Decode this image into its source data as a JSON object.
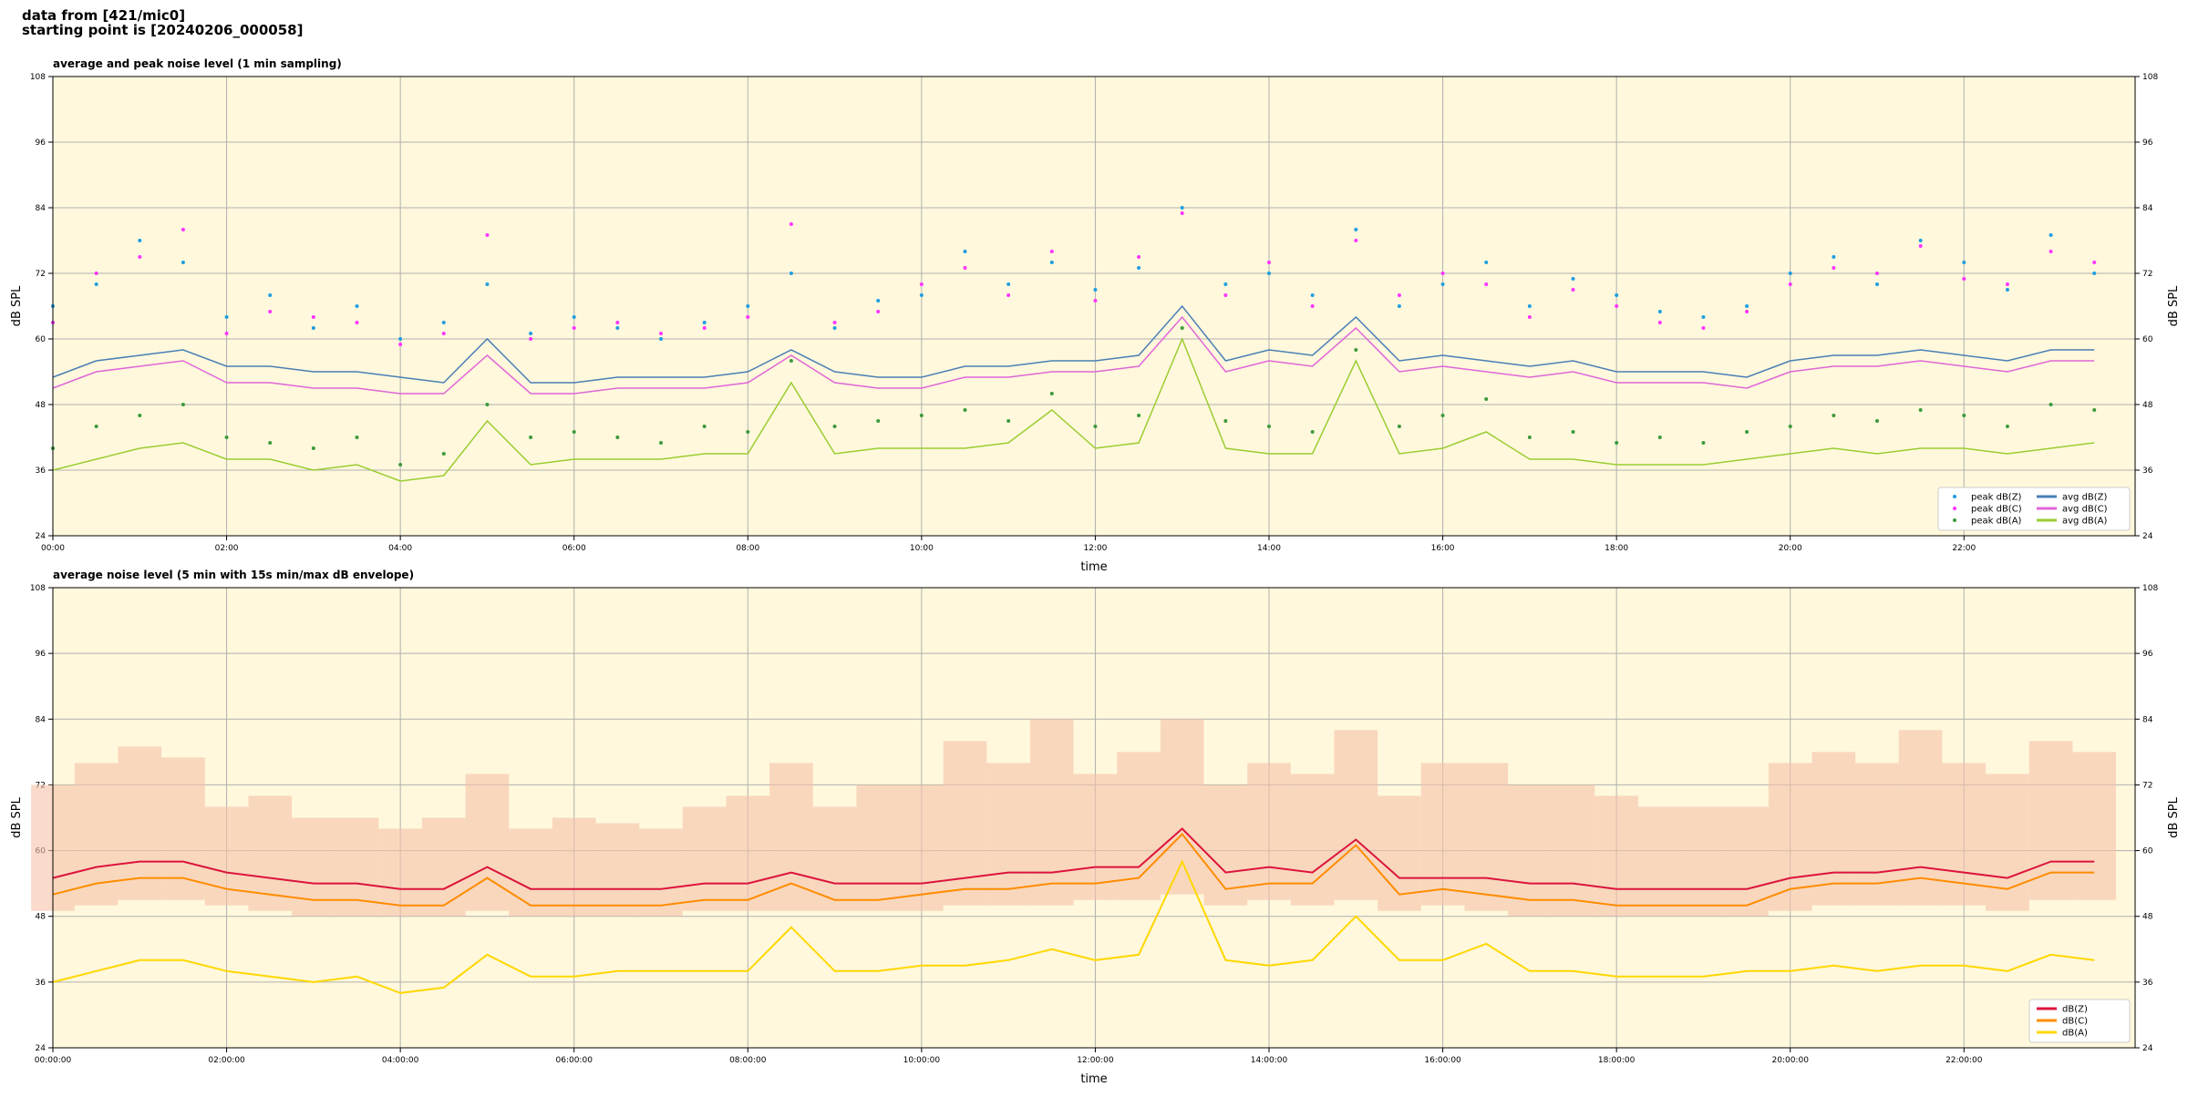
{
  "header": {
    "lines": [
      "data from [421/mic0]",
      "starting point is [20240206_000058]"
    ]
  },
  "chart_data": [
    {
      "type": "line",
      "title": "average and peak noise level (1 min sampling)",
      "xlabel": "time",
      "ylabel": "dB SPL",
      "background": "#fff8dc",
      "grid": true,
      "legend": "lower right",
      "xlim": [
        0,
        23.97
      ],
      "ylim": [
        24,
        108
      ],
      "yticks": [
        24,
        36,
        48,
        60,
        72,
        84,
        96,
        108
      ],
      "xticks": [
        {
          "value": 0,
          "label": "00:00"
        },
        {
          "value": 2,
          "label": "02:00"
        },
        {
          "value": 4,
          "label": "04:00"
        },
        {
          "value": 6,
          "label": "06:00"
        },
        {
          "value": 8,
          "label": "08:00"
        },
        {
          "value": 10,
          "label": "10:00"
        },
        {
          "value": 12,
          "label": "12:00"
        },
        {
          "value": 14,
          "label": "14:00"
        },
        {
          "value": 16,
          "label": "16:00"
        },
        {
          "value": 18,
          "label": "18:00"
        },
        {
          "value": 20,
          "label": "20:00"
        },
        {
          "value": 22,
          "label": "22:00"
        }
      ],
      "x": [
        0,
        0.5,
        1,
        1.5,
        2,
        2.5,
        3,
        3.5,
        4,
        4.5,
        5,
        5.5,
        6,
        6.5,
        7,
        7.5,
        8,
        8.5,
        9,
        9.5,
        10,
        10.5,
        11,
        11.5,
        12,
        12.5,
        13,
        13.5,
        14,
        14.5,
        15,
        15.5,
        16,
        16.5,
        17,
        17.5,
        18,
        18.5,
        19,
        19.5,
        20,
        20.5,
        21,
        21.5,
        22,
        22.5,
        23,
        23.5
      ],
      "series": [
        {
          "name": "peak dB(Z)",
          "mode": "markers",
          "color": "#1f9fe0",
          "values": [
            66,
            70,
            78,
            74,
            64,
            68,
            62,
            66,
            60,
            63,
            70,
            61,
            64,
            62,
            60,
            63,
            66,
            72,
            62,
            67,
            68,
            76,
            70,
            74,
            69,
            73,
            84,
            70,
            72,
            68,
            80,
            66,
            70,
            74,
            66,
            71,
            68,
            65,
            64,
            66,
            72,
            75,
            70,
            78,
            74,
            69,
            79,
            72
          ]
        },
        {
          "name": "peak dB(C)",
          "mode": "markers",
          "color": "#ff33ff",
          "values": [
            63,
            72,
            75,
            80,
            61,
            65,
            64,
            63,
            59,
            61,
            79,
            60,
            62,
            63,
            61,
            62,
            64,
            81,
            63,
            65,
            70,
            73,
            68,
            76,
            67,
            75,
            83,
            68,
            74,
            66,
            78,
            68,
            72,
            70,
            64,
            69,
            66,
            63,
            62,
            65,
            70,
            73,
            72,
            77,
            71,
            70,
            76,
            74
          ]
        },
        {
          "name": "peak dB(A)",
          "mode": "markers",
          "color": "#3c9a3c",
          "values": [
            40,
            44,
            46,
            48,
            42,
            41,
            40,
            42,
            37,
            39,
            48,
            42,
            43,
            42,
            41,
            44,
            43,
            56,
            44,
            45,
            46,
            47,
            45,
            50,
            44,
            46,
            62,
            45,
            44,
            43,
            58,
            44,
            46,
            49,
            42,
            43,
            41,
            42,
            41,
            43,
            44,
            46,
            45,
            47,
            46,
            44,
            48,
            47
          ]
        },
        {
          "name": "avg dB(Z)",
          "mode": "line",
          "color": "#4a7fb5",
          "values": [
            53,
            56,
            57,
            58,
            55,
            55,
            54,
            54,
            53,
            52,
            60,
            52,
            52,
            53,
            53,
            53,
            54,
            58,
            54,
            53,
            53,
            55,
            55,
            56,
            56,
            57,
            66,
            56,
            58,
            57,
            64,
            56,
            57,
            56,
            55,
            56,
            54,
            54,
            54,
            53,
            56,
            57,
            57,
            58,
            57,
            56,
            58,
            58
          ]
        },
        {
          "name": "avg dB(C)",
          "mode": "line",
          "color": "#e066d8",
          "values": [
            51,
            54,
            55,
            56,
            52,
            52,
            51,
            51,
            50,
            50,
            57,
            50,
            50,
            51,
            51,
            51,
            52,
            57,
            52,
            51,
            51,
            53,
            53,
            54,
            54,
            55,
            64,
            54,
            56,
            55,
            62,
            54,
            55,
            54,
            53,
            54,
            52,
            52,
            52,
            51,
            54,
            55,
            55,
            56,
            55,
            54,
            56,
            56
          ]
        },
        {
          "name": "avg dB(A)",
          "mode": "line",
          "color": "#9acd32",
          "values": [
            36,
            38,
            40,
            41,
            38,
            38,
            36,
            37,
            34,
            35,
            45,
            37,
            38,
            38,
            38,
            39,
            39,
            52,
            39,
            40,
            40,
            40,
            41,
            47,
            40,
            41,
            60,
            40,
            39,
            39,
            56,
            39,
            40,
            43,
            38,
            38,
            37,
            37,
            37,
            38,
            39,
            40,
            39,
            40,
            40,
            39,
            40,
            41
          ]
        }
      ]
    },
    {
      "type": "line",
      "title": "average noise level (5 min with 15s min/max dB envelope)",
      "xlabel": "time",
      "ylabel": "dB SPL",
      "background": "#fff8dc",
      "grid": true,
      "legend": "lower right",
      "xlim": [
        0,
        23.97
      ],
      "ylim": [
        24,
        108
      ],
      "yticks": [
        24,
        36,
        48,
        60,
        72,
        84,
        96,
        108
      ],
      "xticks": [
        {
          "value": 0,
          "label": "00:00:00"
        },
        {
          "value": 2,
          "label": "02:00:00"
        },
        {
          "value": 4,
          "label": "04:00:00"
        },
        {
          "value": 6,
          "label": "06:00:00"
        },
        {
          "value": 8,
          "label": "08:00:00"
        },
        {
          "value": 10,
          "label": "10:00:00"
        },
        {
          "value": 12,
          "label": "12:00:00"
        },
        {
          "value": 14,
          "label": "14:00:00"
        },
        {
          "value": 16,
          "label": "16:00:00"
        },
        {
          "value": 18,
          "label": "18:00:00"
        },
        {
          "value": 20,
          "label": "20:00:00"
        },
        {
          "value": 22,
          "label": "22:00:00"
        }
      ],
      "x": [
        0,
        0.5,
        1,
        1.5,
        2,
        2.5,
        3,
        3.5,
        4,
        4.5,
        5,
        5.5,
        6,
        6.5,
        7,
        7.5,
        8,
        8.5,
        9,
        9.5,
        10,
        10.5,
        11,
        11.5,
        12,
        12.5,
        13,
        13.5,
        14,
        14.5,
        15,
        15.5,
        16,
        16.5,
        17,
        17.5,
        18,
        18.5,
        19,
        19.5,
        20,
        20.5,
        21,
        21.5,
        22,
        22.5,
        23,
        23.5
      ],
      "envelope": {
        "color": "#f5c2a8",
        "lower": [
          49,
          50,
          51,
          51,
          50,
          49,
          48,
          48,
          48,
          48,
          49,
          48,
          48,
          48,
          48,
          49,
          49,
          49,
          49,
          49,
          49,
          50,
          50,
          50,
          51,
          51,
          52,
          50,
          51,
          50,
          51,
          49,
          50,
          49,
          48,
          48,
          48,
          48,
          48,
          48,
          49,
          50,
          50,
          50,
          50,
          49,
          51,
          51
        ],
        "upper": [
          72,
          76,
          79,
          77,
          68,
          70,
          66,
          66,
          64,
          66,
          74,
          64,
          66,
          65,
          64,
          68,
          70,
          76,
          68,
          72,
          72,
          80,
          76,
          84,
          74,
          78,
          84,
          72,
          76,
          74,
          82,
          70,
          76,
          76,
          72,
          72,
          70,
          68,
          68,
          68,
          76,
          78,
          76,
          82,
          76,
          74,
          80,
          78
        ]
      },
      "series": [
        {
          "name": "dB(Z)",
          "mode": "line",
          "color": "#dc143c",
          "values": [
            55,
            57,
            58,
            58,
            56,
            55,
            54,
            54,
            53,
            53,
            57,
            53,
            53,
            53,
            53,
            54,
            54,
            56,
            54,
            54,
            54,
            55,
            56,
            56,
            57,
            57,
            64,
            56,
            57,
            56,
            62,
            55,
            55,
            55,
            54,
            54,
            53,
            53,
            53,
            53,
            55,
            56,
            56,
            57,
            56,
            55,
            58,
            58
          ]
        },
        {
          "name": "dB(C)",
          "mode": "line",
          "color": "#ff8c00",
          "values": [
            52,
            54,
            55,
            55,
            53,
            52,
            51,
            51,
            50,
            50,
            55,
            50,
            50,
            50,
            50,
            51,
            51,
            54,
            51,
            51,
            52,
            53,
            53,
            54,
            54,
            55,
            63,
            53,
            54,
            54,
            61,
            52,
            53,
            52,
            51,
            51,
            50,
            50,
            50,
            50,
            53,
            54,
            54,
            55,
            54,
            53,
            56,
            56
          ]
        },
        {
          "name": "dB(A)",
          "mode": "line",
          "color": "#ffd700",
          "values": [
            36,
            38,
            40,
            40,
            38,
            37,
            36,
            37,
            34,
            35,
            41,
            37,
            37,
            38,
            38,
            38,
            38,
            46,
            38,
            38,
            39,
            39,
            40,
            42,
            40,
            41,
            58,
            40,
            39,
            40,
            48,
            40,
            40,
            43,
            38,
            38,
            37,
            37,
            37,
            38,
            38,
            39,
            38,
            39,
            39,
            38,
            41,
            40
          ]
        }
      ]
    }
  ]
}
